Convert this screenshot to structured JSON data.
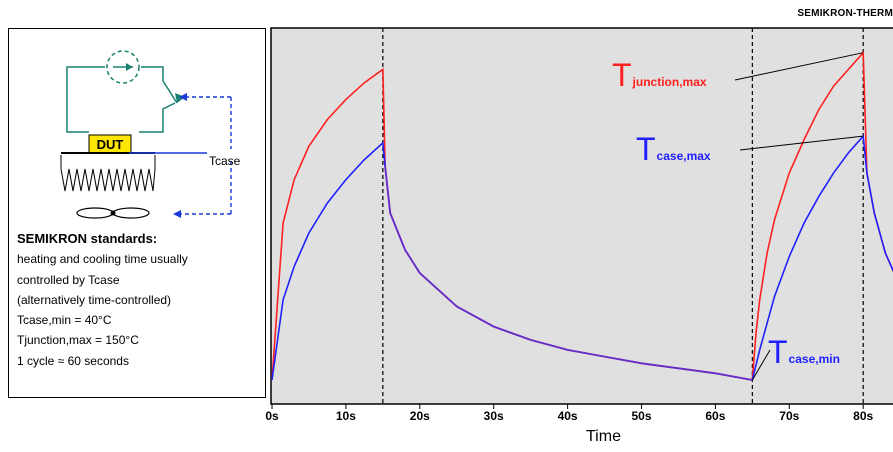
{
  "header": {
    "brand_watermark": "SEMIKRON-THERM"
  },
  "schematic": {
    "dut_label": "DUT",
    "tcase_label": "Tcase",
    "icons": [
      "current-source-icon",
      "switch-icon",
      "heatsink-icon",
      "fan-icon"
    ]
  },
  "notes": {
    "heading": "SEMIKRON standards:",
    "lines": [
      "heating and cooling time usually",
      "controlled by Tcase",
      "(alternatively time-controlled)",
      "Tcase,min = 40°C",
      "Tjunction,max = 150°C",
      "1 cycle ≈ 60 seconds"
    ]
  },
  "colors": {
    "junction": "#ff2020",
    "case": "#2020ff",
    "overlap": "#6a2ec8",
    "plot_bg": "#e0e0e0",
    "switch_circuit": "#1a8070",
    "dut_fill": "#ffe600"
  },
  "chart_data": {
    "type": "line",
    "xlabel": "Time",
    "x_ticks": [
      "0s",
      "10s",
      "20s",
      "30s",
      "40s",
      "50s",
      "60s",
      "70s",
      "80s"
    ],
    "x_tick_values": [
      0,
      10,
      20,
      30,
      40,
      50,
      60,
      70,
      80
    ],
    "x_range": [
      0,
      85
    ],
    "y_axis_shown": false,
    "grid": false,
    "cycle_markers": [
      15,
      65,
      80
    ],
    "annotations": [
      {
        "main": "T",
        "sub": "junction,max",
        "color": "#ff2020"
      },
      {
        "main": "T",
        "sub": "case,max",
        "color": "#2020ff"
      },
      {
        "main": "T",
        "sub": "case,min",
        "color": "#2020ff"
      }
    ],
    "series": [
      {
        "key": "junction",
        "color": "#ff2020",
        "x": [
          0,
          1.5,
          3,
          5,
          7.5,
          10,
          12.5,
          15,
          15.3,
          16,
          18,
          20,
          25,
          30,
          35,
          40,
          45,
          50,
          55,
          60,
          65,
          65.5,
          66,
          67,
          68,
          70,
          72,
          74,
          76,
          78,
          80,
          80.5,
          81.5,
          83,
          85
        ],
        "y": [
          0,
          0.47,
          0.6,
          0.7,
          0.78,
          0.84,
          0.89,
          0.93,
          0.64,
          0.5,
          0.39,
          0.32,
          0.22,
          0.16,
          0.12,
          0.09,
          0.07,
          0.05,
          0.035,
          0.02,
          0,
          0.14,
          0.24,
          0.38,
          0.48,
          0.62,
          0.72,
          0.81,
          0.88,
          0.93,
          0.98,
          0.62,
          0.5,
          0.38,
          0.28
        ]
      },
      {
        "key": "case",
        "color": "#2020ff",
        "x": [
          0,
          1.5,
          3,
          5,
          7.5,
          10,
          12.5,
          15,
          15.3,
          16,
          18,
          20,
          25,
          30,
          35,
          40,
          45,
          50,
          55,
          60,
          65,
          66,
          67,
          68,
          70,
          72,
          74,
          76,
          78,
          80,
          80.5,
          81.5,
          83,
          85
        ],
        "y": [
          0,
          0.24,
          0.34,
          0.44,
          0.53,
          0.6,
          0.66,
          0.71,
          0.64,
          0.5,
          0.39,
          0.32,
          0.22,
          0.16,
          0.12,
          0.09,
          0.07,
          0.05,
          0.035,
          0.02,
          0,
          0.09,
          0.17,
          0.25,
          0.37,
          0.47,
          0.55,
          0.62,
          0.68,
          0.73,
          0.62,
          0.5,
          0.38,
          0.28
        ]
      }
    ]
  }
}
